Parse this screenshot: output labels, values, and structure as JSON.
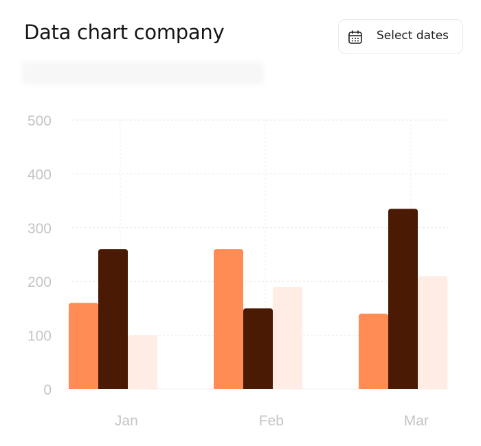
{
  "header": {
    "title": "Data chart company",
    "select_dates_label": "Select dates",
    "calendar_icon": "calendar-icon"
  },
  "chart_data": {
    "type": "bar",
    "title": "",
    "xlabel": "",
    "ylabel": "",
    "categories": [
      "Jan",
      "Feb",
      "Mar"
    ],
    "series": [
      {
        "color": "#FF8C55",
        "values": [
          160,
          260,
          140
        ]
      },
      {
        "color": "#4A1A04",
        "values": [
          260,
          150,
          335
        ]
      },
      {
        "color": "#FFEDE5",
        "values": [
          100,
          190,
          210
        ]
      }
    ],
    "ylim": [
      0,
      500
    ],
    "yticks": [
      "0",
      "100",
      "200",
      "300",
      "400",
      "500"
    ],
    "grid": true
  }
}
